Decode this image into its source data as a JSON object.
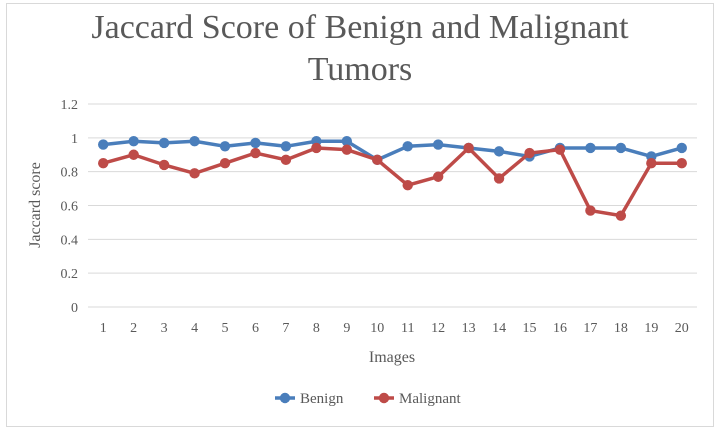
{
  "chart_data": {
    "type": "line",
    "title": "Jaccard Score of Benign and Malignant Tumors",
    "title_lines": [
      "Jaccard Score of Benign and Malignant",
      "Tumors"
    ],
    "xlabel": "Images",
    "ylabel": "Jaccard score",
    "categories": [
      "1",
      "2",
      "3",
      "4",
      "5",
      "6",
      "7",
      "8",
      "9",
      "10",
      "11",
      "12",
      "13",
      "14",
      "15",
      "16",
      "17",
      "18",
      "19",
      "20"
    ],
    "yticks": [
      "0",
      "0.2",
      "0.4",
      "0.6",
      "0.8",
      "1",
      "1.2"
    ],
    "ylim": [
      0,
      1.2
    ],
    "grid": true,
    "legend_position": "bottom",
    "series": [
      {
        "name": "Benign",
        "color": "#4a7ebb",
        "values": [
          0.96,
          0.98,
          0.97,
          0.98,
          0.95,
          0.97,
          0.95,
          0.98,
          0.98,
          0.87,
          0.95,
          0.96,
          0.94,
          0.92,
          0.89,
          0.94,
          0.94,
          0.94,
          0.89,
          0.94
        ]
      },
      {
        "name": "Malignant",
        "color": "#be4b48",
        "values": [
          0.85,
          0.9,
          0.84,
          0.79,
          0.85,
          0.91,
          0.87,
          0.94,
          0.93,
          0.87,
          0.72,
          0.77,
          0.94,
          0.76,
          0.91,
          0.93,
          0.57,
          0.54,
          0.85,
          0.85
        ]
      }
    ]
  }
}
